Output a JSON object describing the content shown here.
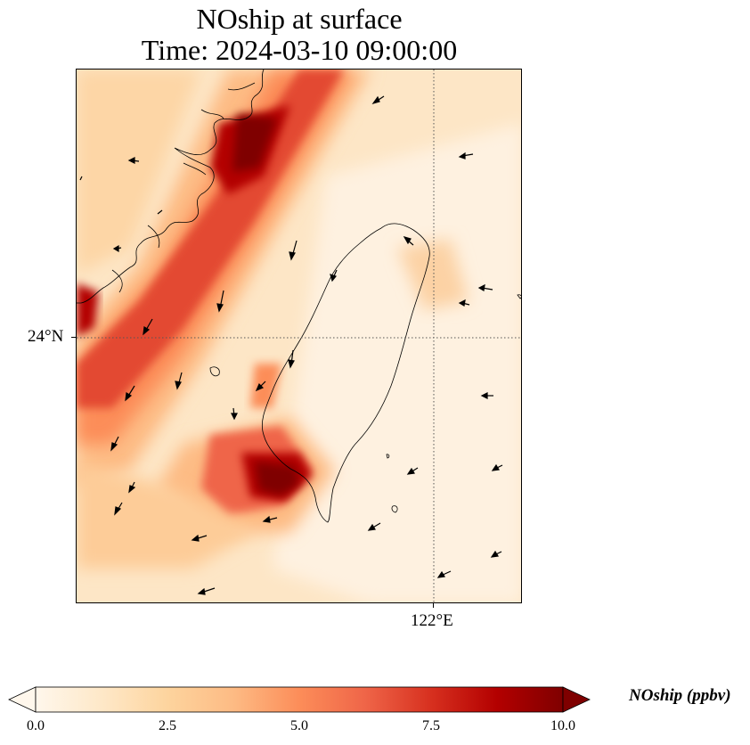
{
  "title": {
    "line1": "NOship at surface",
    "line2": "Time: 2024-03-10 09:00:00"
  },
  "axes": {
    "lat_label": "24°N",
    "lon_label": "122°E"
  },
  "colorbar": {
    "label": "NOship (ppbv)",
    "ticks": [
      "0.0",
      "2.5",
      "5.0",
      "7.5",
      "10.0"
    ],
    "min": 0,
    "max": 10,
    "extend": "both",
    "colormap": "OrRd",
    "colors": [
      "#fff7ec",
      "#fee8c8",
      "#fdd49e",
      "#fdbb84",
      "#fc8d59",
      "#ef6548",
      "#d7301f",
      "#b30000",
      "#7f0000"
    ]
  },
  "map": {
    "gridlines": "dotted",
    "coastline_color": "#000000"
  }
}
